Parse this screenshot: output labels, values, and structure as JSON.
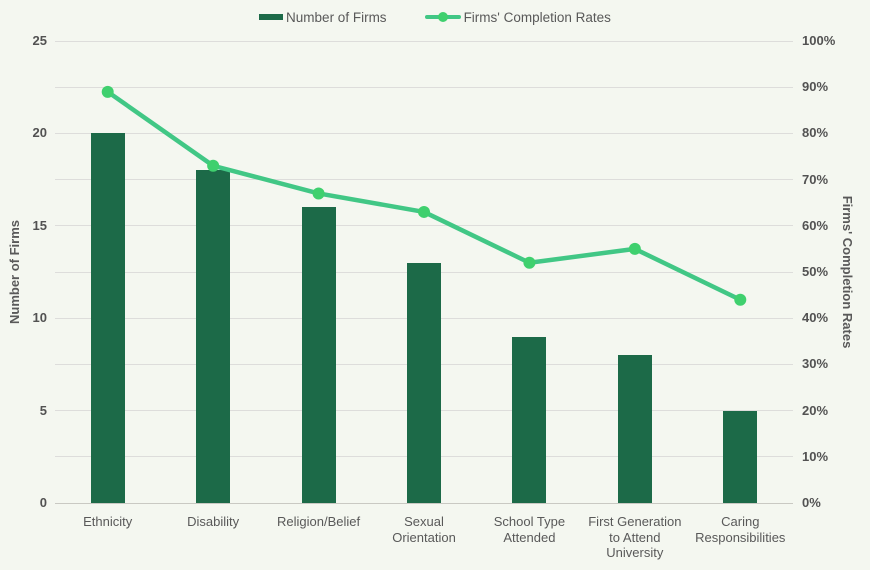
{
  "page": {
    "background": "#f4f7f0"
  },
  "chart_data": {
    "type": "combo-bar-line",
    "title": "",
    "categories": [
      "Ethnicity",
      "Disability",
      "Religion/Belief",
      "Sexual Orientation",
      "School Type Attended",
      "First Generation to Attend University",
      "Caring Responsibilities"
    ],
    "series": [
      {
        "name": "Number of Firms",
        "type": "bar",
        "axis": "left",
        "color": "#1c6a48",
        "values": [
          20,
          18,
          16,
          13,
          9,
          8,
          5
        ]
      },
      {
        "name": "Firms' Completion Rates",
        "type": "line",
        "axis": "right",
        "color": "#41c785",
        "marker_color": "#3fd06e",
        "values": [
          89,
          73,
          67,
          63,
          52,
          55,
          44
        ]
      }
    ],
    "left_axis": {
      "label": "Number of Firms",
      "min": 0,
      "max": 25,
      "tick_step": 5,
      "ticks": [
        "0",
        "5",
        "10",
        "15",
        "20",
        "25"
      ]
    },
    "right_axis": {
      "label": "Firms' Completion Rates",
      "min": 0,
      "max": 100,
      "tick_step": 10,
      "ticks": [
        "0%",
        "10%",
        "20%",
        "30%",
        "40%",
        "50%",
        "60%",
        "70%",
        "80%",
        "90%",
        "100%"
      ]
    },
    "grid": "horizontal",
    "grid_color": "#dddddb",
    "axis_line_color": "#c9c9c3",
    "text_color": "#595959",
    "legend_position": "top",
    "background_color": "#f4f7f0"
  }
}
